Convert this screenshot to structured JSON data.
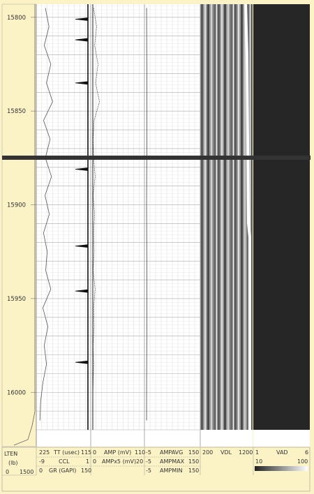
{
  "chart_data": {
    "type": "line",
    "title": "",
    "depth_axis": {
      "ticks": [
        15800,
        15850,
        15900,
        15950,
        16000
      ],
      "range": [
        15793,
        16020
      ],
      "orientation": "increasing-downward",
      "tick_labels": [
        "15800",
        "15850",
        "15900",
        "15950",
        "16000"
      ]
    },
    "tracks": {
      "lten": {
        "label": "LTEN",
        "unit": "(lb)",
        "min": "0",
        "max": "1500"
      },
      "tt": {
        "label": "TT (usec)",
        "left": "225",
        "right": "115"
      },
      "ccl": {
        "label": "CCL",
        "left": "-9",
        "right": "1"
      },
      "gr": {
        "label": "GR (GAPI)",
        "left": "0",
        "right": "150"
      },
      "amp": {
        "label": "AMP (mV)",
        "left": "0",
        "right": "110"
      },
      "ampx5": {
        "label": "AMPx5 (mV)",
        "left": "0",
        "right": "20"
      },
      "ampavg": {
        "label": "AMPAVG",
        "left": "-5",
        "right": "150"
      },
      "ampmax": {
        "label": "AMPMAX",
        "left": "-5",
        "right": "150"
      },
      "ampmin": {
        "label": "AMPMIN",
        "left": "-5",
        "right": "150"
      },
      "vdl": {
        "label": "VDL",
        "left": "200",
        "right": "1200"
      },
      "vad": {
        "label": "VAD",
        "left": "1",
        "right": "6",
        "scale_left": "10",
        "scale_right": "100"
      }
    },
    "ccl_collar_depths": [
      15801,
      15812,
      15835,
      15881,
      15922,
      15946,
      15984
    ],
    "series": [
      {
        "name": "GR (GAPI)",
        "depth": [
          15795,
          15805,
          15815,
          15825,
          15835,
          15845,
          15855,
          15865,
          15875,
          15885,
          15895,
          15905,
          15915,
          15925,
          15935,
          15945,
          15955,
          15965,
          15975,
          15985,
          15995,
          16005,
          16015
        ],
        "values": [
          25,
          35,
          22,
          40,
          28,
          45,
          20,
          38,
          25,
          42,
          24,
          36,
          20,
          30,
          26,
          40,
          18,
          32,
          22,
          28,
          18,
          12,
          10
        ]
      },
      {
        "name": "AMP (mV)",
        "depth": [
          15795,
          15805,
          15815,
          15825,
          15835,
          15845,
          15855,
          15865,
          15875,
          15885,
          15895,
          15905,
          15915,
          15925,
          15935,
          15945,
          15955,
          15965,
          15975,
          15985,
          15995,
          16005,
          16015
        ],
        "values": [
          6,
          12,
          8,
          15,
          10,
          18,
          7,
          5,
          6,
          9,
          5,
          8,
          6,
          7,
          5,
          9,
          6,
          7,
          5,
          6,
          5,
          4,
          4
        ]
      },
      {
        "name": "AMPAVG",
        "depth": [
          15795,
          15850,
          15900,
          15950,
          16000,
          16015
        ],
        "values": [
          1,
          2,
          1,
          2,
          1,
          1
        ]
      }
    ]
  }
}
